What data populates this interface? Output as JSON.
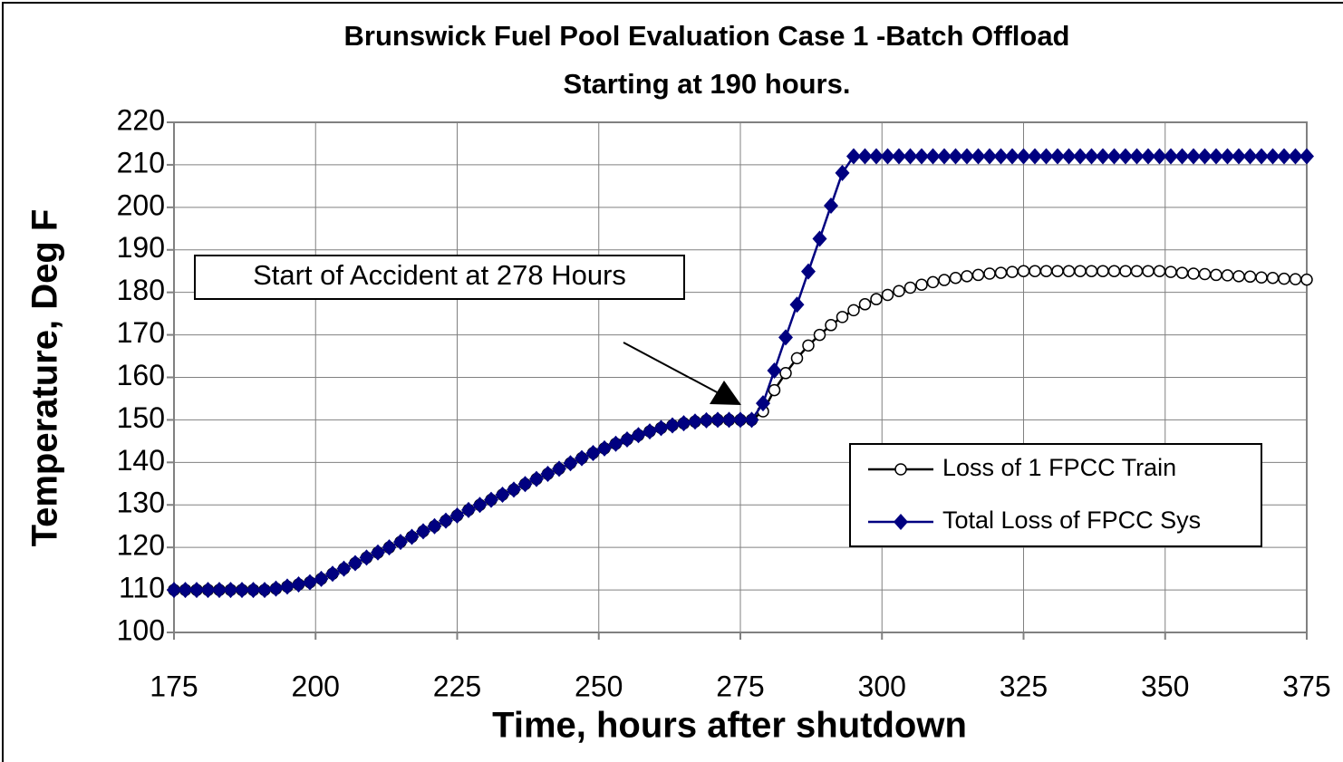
{
  "chart_data": {
    "type": "line",
    "title": [
      "Brunswick Fuel Pool Evaluation Case 1 -Batch Offload",
      "Starting at 190 hours."
    ],
    "xlabel": "Time, hours after shutdown",
    "ylabel": "Temperature, Deg F",
    "annotation": "Start of Accident at 278 Hours",
    "xlim": [
      175,
      375
    ],
    "xticks": [
      175,
      200,
      225,
      250,
      275,
      300,
      325,
      350,
      375
    ],
    "ylim": [
      100,
      220
    ],
    "yticks": [
      100,
      110,
      120,
      130,
      140,
      150,
      160,
      170,
      180,
      190,
      200,
      210,
      220
    ],
    "grid": true,
    "legend": "right",
    "x": [
      175,
      177,
      179,
      181,
      183,
      185,
      187,
      189,
      191,
      193,
      195,
      197,
      199,
      201,
      203,
      205,
      207,
      209,
      211,
      213,
      215,
      217,
      219,
      221,
      223,
      225,
      227,
      229,
      231,
      233,
      235,
      237,
      239,
      241,
      243,
      245,
      247,
      249,
      251,
      253,
      255,
      257,
      259,
      261,
      263,
      265,
      267,
      269,
      271,
      273,
      275,
      277,
      279,
      281,
      283,
      285,
      287,
      289,
      291,
      293,
      295,
      297,
      299,
      301,
      303,
      305,
      307,
      309,
      311,
      313,
      315,
      317,
      319,
      321,
      323,
      325,
      327,
      329,
      331,
      333,
      335,
      337,
      339,
      341,
      343,
      345,
      347,
      349,
      351,
      353,
      355,
      357,
      359,
      361,
      363,
      365,
      367,
      369,
      371,
      373,
      375
    ],
    "series": [
      {
        "name": "Loss of 1 FPCC Train",
        "color": "#000000",
        "marker": "circle",
        "values": [
          110,
          110,
          110,
          110,
          110,
          110,
          110,
          110,
          110,
          110.3,
          110.8,
          111.3,
          111.8,
          112.6,
          113.8,
          115,
          116.3,
          117.6,
          118.8,
          120,
          121.3,
          122.5,
          123.8,
          125,
          126.3,
          127.5,
          128.8,
          130,
          131.2,
          132.4,
          133.6,
          134.9,
          136.1,
          137.3,
          138.5,
          139.8,
          141,
          142.2,
          143.3,
          144.4,
          145.4,
          146.4,
          147.3,
          148.1,
          148.7,
          149.2,
          149.6,
          149.9,
          150,
          150,
          150,
          150,
          152,
          157,
          161,
          164.5,
          167.5,
          170,
          172.3,
          174.2,
          175.8,
          177.2,
          178.4,
          179.4,
          180.3,
          181.1,
          181.8,
          182.4,
          182.9,
          183.4,
          183.8,
          184.1,
          184.4,
          184.6,
          184.8,
          185,
          185,
          185,
          185,
          185,
          185,
          185,
          185,
          185,
          185,
          185,
          185,
          185,
          184.8,
          184.6,
          184.4,
          184.3,
          184.1,
          184,
          183.8,
          183.7,
          183.5,
          183.4,
          183.2,
          183.1,
          183
        ]
      },
      {
        "name": "Total Loss of FPCC Sys",
        "color": "#000080",
        "marker": "diamond",
        "values": [
          110,
          110,
          110,
          110,
          110,
          110,
          110,
          110,
          110,
          110.3,
          110.8,
          111.3,
          111.8,
          112.6,
          113.8,
          115,
          116.3,
          117.6,
          118.8,
          120,
          121.3,
          122.5,
          123.8,
          125,
          126.3,
          127.5,
          128.8,
          130,
          131.2,
          132.4,
          133.6,
          134.9,
          136.1,
          137.3,
          138.5,
          139.8,
          141,
          142.2,
          143.3,
          144.4,
          145.4,
          146.4,
          147.3,
          148.1,
          148.7,
          149.2,
          149.6,
          149.9,
          150,
          150,
          150,
          150,
          153.9,
          161.6,
          169.4,
          177.1,
          184.9,
          192.6,
          200.4,
          208.1,
          212,
          212,
          212,
          212,
          212,
          212,
          212,
          212,
          212,
          212,
          212,
          212,
          212,
          212,
          212,
          212,
          212,
          212,
          212,
          212,
          212,
          212,
          212,
          212,
          212,
          212,
          212,
          212,
          212,
          212,
          212,
          212,
          212,
          212,
          212,
          212,
          212,
          212,
          212,
          212,
          212
        ]
      }
    ]
  }
}
